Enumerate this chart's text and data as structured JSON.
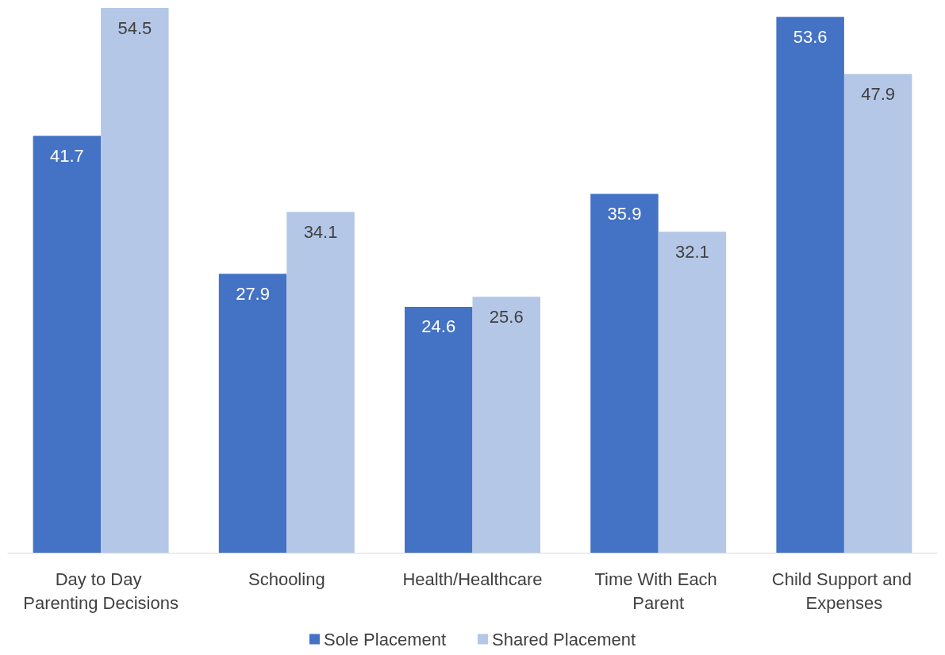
{
  "chart_data": {
    "type": "bar",
    "categories": [
      "Day to Day Parenting Decisions",
      "Schooling",
      "Health/Healthcare",
      "Time With Each Parent",
      "Child Support and Expenses"
    ],
    "series": [
      {
        "name": "Sole Placement",
        "color": "#4472c4",
        "values": [
          41.7,
          27.9,
          24.6,
          35.9,
          53.6
        ]
      },
      {
        "name": "Shared Placement",
        "color": "#b4c7e7",
        "values": [
          54.5,
          34.1,
          25.6,
          32.1,
          47.9
        ]
      }
    ],
    "data_labels": true,
    "legend": "bottom"
  }
}
